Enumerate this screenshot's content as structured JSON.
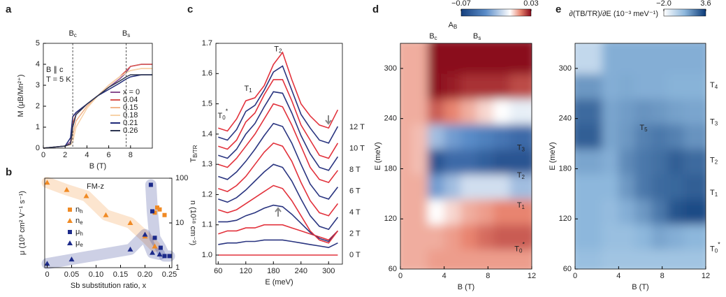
{
  "chart_data": [
    {
      "panel": "a",
      "type": "line",
      "xlabel": "B (T)",
      "ylabel": "M (μB/Mn²⁺)",
      "xlim": [
        0,
        10
      ],
      "ylim": [
        0,
        5
      ],
      "xticks": [
        0,
        2,
        4,
        6,
        8
      ],
      "yticks": [
        0,
        1,
        2,
        3,
        4,
        5
      ],
      "vlines": [
        "Bc",
        "Bs"
      ],
      "annotations": [
        "B ∥ c",
        "T = 5 K"
      ],
      "legend": "lower right",
      "x": [
        0,
        1,
        2,
        2.5,
        2.7,
        3,
        4,
        5,
        6,
        7,
        7.6,
        8,
        9,
        10
      ],
      "series": [
        {
          "name": "x = 0",
          "color": "#8a4f8f",
          "values": [
            0,
            0.05,
            0.1,
            0.3,
            1.5,
            1.7,
            2.1,
            2.5,
            2.9,
            3.3,
            3.6,
            3.9,
            4.0,
            4.0
          ]
        },
        {
          "name": "0.04",
          "color": "#d9534f",
          "values": [
            0,
            0.05,
            0.1,
            0.2,
            1.2,
            1.6,
            2.1,
            2.5,
            3.0,
            3.4,
            3.7,
            3.9,
            4.0,
            4.0
          ]
        },
        {
          "name": "0.15",
          "color": "#f2b48a",
          "values": [
            0,
            0.05,
            0.1,
            0.2,
            0.6,
            1.3,
            2.0,
            2.5,
            3.0,
            3.4,
            3.6,
            3.7,
            3.8,
            3.8
          ]
        },
        {
          "name": "0.18",
          "color": "#f7d2a8",
          "values": [
            0,
            0.05,
            0.1,
            0.15,
            0.3,
            1.0,
            1.9,
            2.5,
            3.0,
            3.4,
            3.6,
            3.7,
            3.8,
            3.8
          ]
        },
        {
          "name": "0.21",
          "color": "#1f2a78",
          "values": [
            0,
            0.05,
            0.1,
            0.5,
            1.5,
            1.7,
            2.1,
            2.5,
            2.8,
            3.1,
            3.3,
            3.4,
            3.5,
            3.5
          ]
        },
        {
          "name": "0.26",
          "color": "#2c3550",
          "values": [
            0,
            0.05,
            0.1,
            0.2,
            1.0,
            1.6,
            2.1,
            2.5,
            2.9,
            3.2,
            3.4,
            3.5,
            3.5,
            3.5
          ]
        }
      ]
    },
    {
      "panel": "b",
      "type": "scatter",
      "title": "FM-z",
      "xlabel": "Sb substitution ratio, x",
      "ylabel": "μ (10³ cm² V⁻¹ s⁻¹)",
      "y2label": "n (10¹⁸ cm⁻³)",
      "xlim": [
        -0.005,
        0.255
      ],
      "xticks": [
        0,
        0.05,
        {
          "value": 0.1,
          "label": "0.10"
        },
        0.15,
        {
          "value": 0.2,
          "label": "0.20"
        },
        0.25
      ],
      "ylim": [
        0,
        2.7
      ],
      "y2lim": [
        1,
        100
      ],
      "y2ticks": [
        1,
        10,
        100
      ],
      "y2log": true,
      "series": [
        {
          "name": "nh",
          "color": "#f08a24",
          "marker": "square",
          "axis": "y2",
          "band": false,
          "x": [
            0.22,
            0.225,
            0.23,
            0.24
          ],
          "values": [
            17,
            22,
            20,
            15
          ]
        },
        {
          "name": "ne",
          "color": "#f08a24",
          "marker": "triangle",
          "axis": "y2",
          "band": true,
          "x": [
            0,
            0.04,
            0.08,
            0.12,
            0.17,
            0.2,
            0.22
          ],
          "values": [
            80,
            55,
            40,
            15,
            10,
            5,
            3
          ]
        },
        {
          "name": "μh",
          "color": "#1c2a8a",
          "marker": "square",
          "band": true,
          "x": [
            0.212,
            0.215,
            0.22,
            0.232,
            0.24,
            0.25
          ],
          "values": [
            2.5,
            1.7,
            0.9,
            0.6,
            0.35,
            0.35
          ]
        },
        {
          "name": "μe",
          "color": "#1c2a8a",
          "marker": "triangle",
          "band": true,
          "x": [
            0,
            0.05,
            0.17,
            0.2,
            0.215,
            0.23
          ],
          "values": [
            0.12,
            0.25,
            0.55,
            1.0,
            0.45,
            0.4
          ]
        }
      ]
    },
    {
      "panel": "c",
      "type": "line",
      "xlabel": "E (meV)",
      "ylabel": "TB/TR",
      "xlim": [
        55,
        330
      ],
      "ylim": [
        0.97,
        1.7
      ],
      "xticks": [
        60,
        120,
        180,
        240,
        300
      ],
      "yticks": [
        {
          "value": 1.0,
          "label": "1.0"
        },
        1.1,
        1.2,
        1.3,
        1.4,
        1.5,
        1.6,
        1.7
      ],
      "annotations": [
        "T0*",
        "T1",
        "T2"
      ],
      "x": [
        60,
        80,
        100,
        120,
        140,
        160,
        180,
        200,
        220,
        240,
        260,
        280,
        300,
        320
      ],
      "series": [
        {
          "name": "0 T",
          "color": "#e2323c",
          "values": [
            1.0,
            1.0,
            1.0,
            1.0,
            1.0,
            1.0,
            1.0,
            1.0,
            1.0,
            1.0,
            1.0,
            1.0,
            1.0,
            1.0
          ]
        },
        {
          "name": null,
          "color": "#2a3580",
          "values": [
            1.035,
            1.04,
            1.04,
            1.045,
            1.045,
            1.05,
            1.05,
            1.05,
            1.045,
            1.04,
            1.035,
            1.03,
            1.025,
            1.04
          ]
        },
        {
          "name": "2 T",
          "color": "#e2323c",
          "values": [
            1.07,
            1.08,
            1.08,
            1.09,
            1.09,
            1.1,
            1.1,
            1.1,
            1.09,
            1.08,
            1.07,
            1.06,
            1.05,
            1.08
          ]
        },
        {
          "name": null,
          "color": "#2a3580",
          "values": [
            1.11,
            1.11,
            1.115,
            1.13,
            1.14,
            1.155,
            1.165,
            1.16,
            1.135,
            1.105,
            1.075,
            1.055,
            1.045,
            1.08
          ]
        },
        {
          "name": "4 T",
          "color": "#e2323c",
          "values": [
            1.15,
            1.14,
            1.15,
            1.17,
            1.19,
            1.21,
            1.23,
            1.22,
            1.18,
            1.13,
            1.08,
            1.05,
            1.04,
            1.08
          ]
        },
        {
          "name": null,
          "color": "#2a3580",
          "values": [
            1.185,
            1.175,
            1.19,
            1.215,
            1.245,
            1.275,
            1.3,
            1.29,
            1.245,
            1.185,
            1.13,
            1.095,
            1.085,
            1.125
          ]
        },
        {
          "name": "6 T",
          "color": "#e2323c",
          "values": [
            1.22,
            1.21,
            1.23,
            1.26,
            1.3,
            1.34,
            1.37,
            1.36,
            1.31,
            1.24,
            1.18,
            1.14,
            1.13,
            1.17
          ]
        },
        {
          "name": null,
          "color": "#2a3580",
          "values": [
            1.26,
            1.25,
            1.275,
            1.31,
            1.35,
            1.395,
            1.435,
            1.425,
            1.37,
            1.3,
            1.235,
            1.195,
            1.185,
            1.225
          ]
        },
        {
          "name": "8 T",
          "color": "#e2323c",
          "values": [
            1.3,
            1.29,
            1.32,
            1.36,
            1.4,
            1.45,
            1.5,
            1.49,
            1.43,
            1.36,
            1.29,
            1.25,
            1.24,
            1.28
          ]
        },
        {
          "name": null,
          "color": "#2a3580",
          "values": [
            1.33,
            1.32,
            1.35,
            1.4,
            1.435,
            1.49,
            1.54,
            1.535,
            1.47,
            1.395,
            1.335,
            1.29,
            1.28,
            1.325
          ]
        },
        {
          "name": "10 T",
          "color": "#e2323c",
          "values": [
            1.36,
            1.35,
            1.38,
            1.44,
            1.47,
            1.53,
            1.58,
            1.58,
            1.51,
            1.43,
            1.38,
            1.33,
            1.32,
            1.37
          ]
        },
        {
          "name": null,
          "color": "#2a3580",
          "values": [
            1.39,
            1.38,
            1.415,
            1.475,
            1.495,
            1.545,
            1.605,
            1.625,
            1.545,
            1.465,
            1.42,
            1.38,
            1.37,
            1.425
          ]
        },
        {
          "name": "12 T",
          "color": "#e2323c",
          "values": [
            1.42,
            1.41,
            1.45,
            1.51,
            1.52,
            1.56,
            1.63,
            1.67,
            1.58,
            1.5,
            1.46,
            1.43,
            1.42,
            1.48
          ]
        }
      ]
    },
    {
      "panel": "d",
      "type": "heatmap",
      "xlabel": "B (T)",
      "ylabel": "E (meV)",
      "colorbar_label": "AB",
      "xlim": [
        0,
        12
      ],
      "ylim": [
        60,
        330
      ],
      "xticks": [
        0,
        4,
        8,
        12
      ],
      "yticks": [
        60,
        120,
        180,
        240,
        300
      ],
      "clim": [
        -0.07,
        0.03
      ],
      "cbticks": [
        {
          "value": -0.07,
          "label": "−0.07"
        },
        0.03
      ],
      "colormap": "diverging",
      "vlines": [
        "Bc",
        "Bs"
      ],
      "annotations": [
        "T3",
        "T2",
        "T1",
        "T0*"
      ],
      "x_edges": [
        0,
        1.5,
        3,
        4.5,
        6,
        7.5,
        9,
        10.5,
        12
      ],
      "y_edges": [
        60,
        90,
        120,
        150,
        180,
        210,
        240,
        270,
        300,
        330
      ],
      "z": [
        [
          0.01,
          0.01,
          0.012,
          0.012,
          0.012,
          0.012,
          0.012,
          0.012
        ],
        [
          0.01,
          0.01,
          0.01,
          0.012,
          0.015,
          0.018,
          0.02,
          0.02
        ],
        [
          0.01,
          0.01,
          0.0,
          0.005,
          0.01,
          0.012,
          0.015,
          0.015
        ],
        [
          0.01,
          0.01,
          -0.03,
          -0.02,
          -0.01,
          -0.01,
          -0.01,
          -0.02
        ],
        [
          0.01,
          0.008,
          -0.06,
          -0.05,
          -0.05,
          -0.055,
          -0.06,
          -0.06
        ],
        [
          0.01,
          0.008,
          -0.02,
          -0.03,
          -0.035,
          -0.04,
          -0.045,
          -0.05
        ],
        [
          0.01,
          0.01,
          0.02,
          0.015,
          0.01,
          0.005,
          0.0,
          -0.005
        ],
        [
          0.01,
          0.01,
          0.03,
          0.028,
          0.025,
          0.025,
          0.025,
          0.022
        ],
        [
          0.01,
          0.01,
          0.03,
          0.03,
          0.03,
          0.03,
          0.03,
          0.03
        ]
      ]
    },
    {
      "panel": "e",
      "type": "heatmap",
      "xlabel": "B (T)",
      "ylabel": "E (meV)",
      "colorbar_label": "∂(TB/TR)/∂E (10⁻³ meV⁻¹)",
      "xlim": [
        0,
        12
      ],
      "ylim": [
        60,
        330
      ],
      "xticks": [
        0,
        4,
        8,
        12
      ],
      "yticks": [
        60,
        120,
        180,
        240,
        300
      ],
      "clim": [
        -2.0,
        3.6
      ],
      "cbticks": [
        {
          "value": -2.0,
          "label": "−2.0"
        },
        3.6
      ],
      "colormap": "blues",
      "annotations": [
        "T4",
        "T3",
        "T5",
        "T2",
        "T1",
        "T0*"
      ],
      "x_edges": [
        0,
        1.5,
        3,
        4.5,
        6,
        7.5,
        9,
        10.5,
        12
      ],
      "y_edges": [
        60,
        90,
        120,
        150,
        180,
        210,
        240,
        270,
        300,
        330
      ],
      "z": [
        [
          0.5,
          0.5,
          0.3,
          0.3,
          0.3,
          0.3,
          0.3,
          0.3
        ],
        [
          0.8,
          0.8,
          0.5,
          0.5,
          0.8,
          1.2,
          1.0,
          0.8
        ],
        [
          0.8,
          0.8,
          0.6,
          1.0,
          1.5,
          2.2,
          3.0,
          3.2
        ],
        [
          0.8,
          0.8,
          0.8,
          1.5,
          2.2,
          2.5,
          2.6,
          2.8
        ],
        [
          1.2,
          1.2,
          1.0,
          1.8,
          2.2,
          2.4,
          2.8,
          2.5
        ],
        [
          2.8,
          2.8,
          1.2,
          1.5,
          2.0,
          2.2,
          2.0,
          1.6
        ],
        [
          2.5,
          2.5,
          1.2,
          1.4,
          1.6,
          1.5,
          1.3,
          1.2
        ],
        [
          1.5,
          1.5,
          1.0,
          1.1,
          1.0,
          1.0,
          0.9,
          0.9
        ],
        [
          -0.5,
          -0.5,
          1.0,
          1.0,
          1.0,
          1.0,
          1.0,
          1.0
        ]
      ]
    }
  ]
}
